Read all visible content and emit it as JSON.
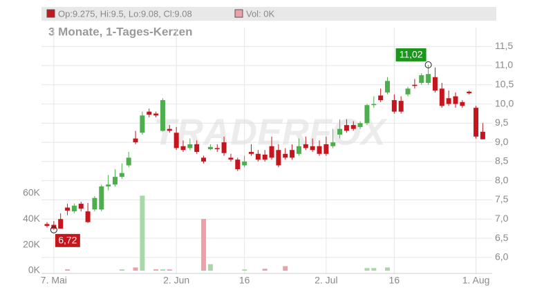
{
  "chart_data": {
    "type": "candlestick",
    "header_price": "Op:9.275, Hi:9.5, Lo:9.08, Cl:9.08",
    "header_volume": "Vol: 0K",
    "subtitle": "3 Monate, 1-Tages-Kerzen",
    "watermark": "TRADERFOX",
    "up_color": "#4cae4c",
    "down_color": "#c4161c",
    "volume_up_color": "#a8d8a8",
    "volume_down_color": "#eea0a8",
    "categories": [
      null,
      "7. Mai",
      null,
      null,
      null,
      null,
      null,
      null,
      null,
      null,
      null,
      null,
      null,
      null,
      null,
      null,
      null,
      null,
      null,
      "2. Jun",
      null,
      null,
      null,
      null,
      null,
      null,
      null,
      null,
      null,
      "16",
      null,
      null,
      null,
      null,
      null,
      null,
      null,
      null,
      null,
      null,
      null,
      "2. Jul",
      null,
      null,
      null,
      null,
      null,
      null,
      null,
      null,
      null,
      "16",
      null,
      null,
      null,
      null,
      null,
      null,
      null,
      null,
      null,
      null,
      null,
      "1. Aug",
      null
    ],
    "open": [
      6.87,
      6.85,
      7.0,
      7.3,
      7.2,
      7.4,
      7.2,
      7.25,
      7.25,
      7.85,
      7.9,
      8.1,
      8.4,
      9.1,
      9.25,
      9.8,
      9.75,
      9.3,
      9.35,
      9.25,
      8.9,
      8.85,
      8.95,
      8.6,
      8.82,
      8.85,
      9.0,
      8.6,
      8.55,
      8.4,
      8.75,
      8.7,
      8.68,
      8.9,
      8.8,
      8.7,
      8.8,
      8.7,
      8.95,
      8.9,
      8.9,
      8.95,
      8.9,
      9.2,
      9.45,
      9.45,
      9.4,
      9.5,
      9.97,
      10.22,
      10.3,
      10.1,
      10.08,
      10.25,
      10.5,
      10.55,
      10.55,
      10.7,
      10.4,
      10.15,
      10.2,
      10.05,
      10.32,
      9.9,
      9.275
    ],
    "high": [
      6.92,
      6.95,
      7.15,
      7.4,
      7.4,
      7.45,
      7.42,
      7.6,
      7.9,
      8.15,
      8.3,
      8.45,
      8.75,
      9.3,
      9.8,
      9.88,
      9.8,
      10.15,
      9.45,
      9.4,
      9.05,
      9.1,
      9.05,
      8.65,
      8.95,
      8.95,
      9.15,
      8.7,
      8.6,
      8.65,
      8.95,
      8.8,
      8.8,
      9.15,
      8.95,
      8.85,
      8.95,
      9.1,
      9.15,
      9.1,
      9.05,
      9.15,
      9.35,
      9.6,
      9.6,
      9.55,
      9.55,
      10.0,
      10.2,
      10.4,
      10.7,
      10.25,
      10.2,
      10.45,
      10.65,
      10.8,
      11.02,
      10.95,
      10.55,
      10.35,
      10.3,
      10.1,
      10.35,
      9.95,
      9.5
    ],
    "low": [
      6.78,
      6.72,
      6.75,
      7.1,
      7.15,
      7.2,
      6.9,
      7.2,
      7.2,
      7.75,
      7.85,
      8.05,
      8.35,
      8.95,
      9.2,
      9.65,
      9.65,
      9.28,
      9.25,
      8.8,
      8.75,
      8.8,
      8.7,
      8.45,
      8.8,
      8.75,
      8.65,
      8.5,
      8.25,
      8.35,
      8.65,
      8.5,
      8.5,
      8.55,
      8.35,
      8.55,
      8.55,
      8.65,
      8.8,
      8.75,
      8.65,
      8.65,
      8.85,
      9.1,
      9.25,
      9.3,
      9.35,
      9.45,
      9.9,
      10.05,
      10.25,
      9.75,
      9.75,
      10.2,
      10.4,
      10.5,
      10.5,
      10.3,
      9.9,
      9.95,
      9.9,
      9.9,
      10.25,
      9.1,
      9.08
    ],
    "close": [
      6.82,
      6.75,
      6.75,
      7.22,
      7.35,
      7.27,
      6.92,
      7.55,
      7.85,
      7.9,
      8.1,
      8.2,
      8.6,
      9.0,
      9.7,
      9.72,
      9.7,
      10.1,
      9.3,
      8.85,
      8.8,
      8.95,
      8.75,
      8.5,
      8.88,
      8.82,
      8.72,
      8.55,
      8.3,
      8.5,
      8.7,
      8.55,
      8.55,
      8.6,
      8.4,
      8.6,
      8.6,
      8.9,
      8.85,
      8.8,
      8.7,
      8.7,
      9.0,
      9.35,
      9.3,
      9.35,
      9.5,
      9.97,
      10.0,
      10.1,
      10.6,
      9.8,
      9.8,
      10.4,
      10.47,
      10.75,
      10.78,
      10.35,
      9.95,
      10.0,
      10.0,
      9.95,
      10.28,
      9.15,
      9.08
    ],
    "volume": [
      0,
      0,
      0,
      1,
      0,
      0,
      0,
      0,
      0,
      0,
      0,
      1,
      0,
      2.5,
      58,
      0,
      1,
      1,
      1,
      0,
      0,
      0,
      0,
      40,
      5,
      0,
      0,
      0,
      0,
      1,
      0,
      0,
      1.5,
      0,
      0,
      3.5,
      0,
      0,
      0,
      0,
      0,
      0,
      0,
      0,
      0,
      0,
      0,
      2,
      2,
      0,
      2.5,
      0,
      0,
      0,
      0,
      0,
      0,
      0,
      0,
      0,
      0,
      0,
      0,
      0,
      0
    ],
    "annotations": [
      {
        "index": 56,
        "value": 11.02,
        "label": "11,02",
        "color": "#1a961a"
      },
      {
        "index": 1,
        "value": 6.72,
        "label": "6,72",
        "color": "#c4161c"
      }
    ],
    "ylim": [
      5.655,
      11.99
    ],
    "yticks": [
      {
        "value": 6,
        "label": "6,0"
      },
      {
        "value": 6.5,
        "label": "6,5"
      },
      {
        "value": 7,
        "label": "7,0"
      },
      {
        "value": 7.5,
        "label": "7,5"
      },
      {
        "value": 8,
        "label": "8,0"
      },
      {
        "value": 8.5,
        "label": "8,5"
      },
      {
        "value": 9,
        "label": "9,0"
      },
      {
        "value": 9.5,
        "label": "9,5"
      },
      {
        "value": 10,
        "label": "10,0"
      },
      {
        "value": 10.5,
        "label": "10,5"
      },
      {
        "value": 11,
        "label": "11,0"
      },
      {
        "value": 11.5,
        "label": "11,5"
      }
    ],
    "vol_ylim": [
      0,
      188
    ],
    "vol_yticks": [
      {
        "value": 0,
        "label": "0K"
      },
      {
        "value": 20,
        "label": "20K"
      },
      {
        "value": 40,
        "label": "40K"
      },
      {
        "value": 60,
        "label": "60K"
      }
    ],
    "grid": true
  }
}
